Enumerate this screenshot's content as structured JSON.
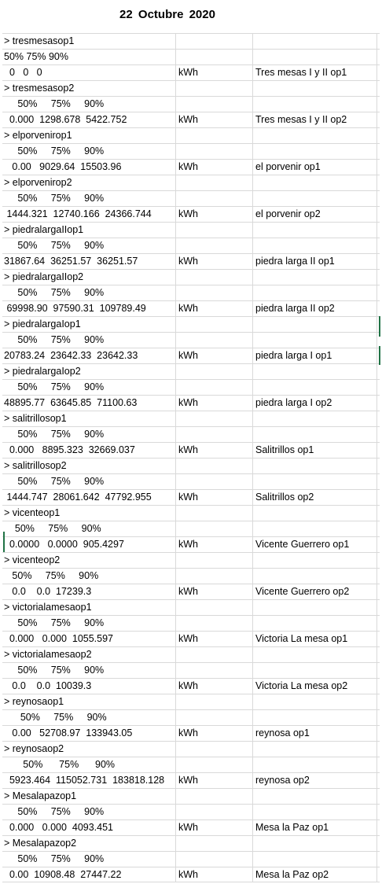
{
  "title": "22  Octubre 2020",
  "rows": [
    {
      "a": "> tresmesasop1",
      "unit": "",
      "name": ""
    },
    {
      "a": "50% 75% 90%",
      "unit": "",
      "name": ""
    },
    {
      "a": "  0   0   0",
      "unit": "kWh",
      "name": "Tres mesas I y II op1"
    },
    {
      "a": "> tresmesasop2",
      "unit": "",
      "name": ""
    },
    {
      "a": "     50%     75%     90%",
      "unit": "",
      "name": ""
    },
    {
      "a": "  0.000  1298.678  5422.752",
      "unit": "kWh",
      "name": "Tres mesas I y II op2"
    },
    {
      "a": "> elporvenirop1",
      "unit": "",
      "name": ""
    },
    {
      "a": "     50%     75%     90%",
      "unit": "",
      "name": ""
    },
    {
      "a": "   0.00   9029.64  15503.96",
      "unit": "kWh",
      "name": "el porvenir op1"
    },
    {
      "a": "> elporvenirop2",
      "unit": "",
      "name": ""
    },
    {
      "a": "     50%     75%     90%",
      "unit": "",
      "name": ""
    },
    {
      "a": " 1444.321  12740.166  24366.744",
      "unit": "kWh",
      "name": "el porvenir op2"
    },
    {
      "a": "> piedralargaIIop1",
      "unit": "",
      "name": ""
    },
    {
      "a": "     50%     75%     90%",
      "unit": "",
      "name": ""
    },
    {
      "a": "31867.64  36251.57  36251.57",
      "unit": "kWh",
      "name": "piedra larga II op1"
    },
    {
      "a": "> piedralargaIIop2",
      "unit": "",
      "name": ""
    },
    {
      "a": "     50%     75%     90%",
      "unit": "",
      "name": ""
    },
    {
      "a": " 69998.90  97590.31  109789.49",
      "unit": "kWh",
      "name": "piedra larga II op2"
    },
    {
      "a": "> piedralargaIop1",
      "unit": "",
      "name": ""
    },
    {
      "a": "     50%     75%     90%",
      "unit": "",
      "name": ""
    },
    {
      "a": "20783.24  23642.33  23642.33",
      "unit": "kWh",
      "name": "piedra larga I op1"
    },
    {
      "a": "> piedralargaIop2",
      "unit": "",
      "name": ""
    },
    {
      "a": "     50%     75%     90%",
      "unit": "",
      "name": ""
    },
    {
      "a": "48895.77  63645.85  71100.63",
      "unit": "kWh",
      "name": "piedra larga I op2"
    },
    {
      "a": "> salitrillosop1",
      "unit": "",
      "name": ""
    },
    {
      "a": "     50%     75%     90%",
      "unit": "",
      "name": ""
    },
    {
      "a": "  0.000   8895.323  32669.037",
      "unit": "kWh",
      "name": "Salitrillos op1"
    },
    {
      "a": "> salitrillosop2",
      "unit": "",
      "name": ""
    },
    {
      "a": "     50%     75%     90%",
      "unit": "",
      "name": ""
    },
    {
      "a": " 1444.747  28061.642  47792.955",
      "unit": "kWh",
      "name": "Salitrillos op2"
    },
    {
      "a": "> vicenteop1",
      "unit": "",
      "name": ""
    },
    {
      "a": "    50%     75%     90%",
      "unit": "",
      "name": ""
    },
    {
      "a": "  0.0000   0.0000  905.4297",
      "unit": "kWh",
      "name": "Vicente Guerrero op1"
    },
    {
      "a": "> vicenteop2",
      "unit": "",
      "name": ""
    },
    {
      "a": "   50%     75%     90%",
      "unit": "",
      "name": ""
    },
    {
      "a": "   0.0    0.0  17239.3",
      "unit": "kWh",
      "name": "Vicente Guerrero op2"
    },
    {
      "a": "> victorialamesaop1",
      "unit": "",
      "name": ""
    },
    {
      "a": "     50%     75%     90%",
      "unit": "",
      "name": ""
    },
    {
      "a": "  0.000   0.000  1055.597",
      "unit": "kWh",
      "name": "Victoria La mesa op1"
    },
    {
      "a": "> victorialamesaop2",
      "unit": "",
      "name": ""
    },
    {
      "a": "     50%     75%     90%",
      "unit": "",
      "name": ""
    },
    {
      "a": "   0.0    0.0  10039.3",
      "unit": "kWh",
      "name": "Victoria La mesa op2"
    },
    {
      "a": "> reynosaop1",
      "unit": "",
      "name": ""
    },
    {
      "a": "      50%     75%     90%",
      "unit": "",
      "name": ""
    },
    {
      "a": "   0.00   52708.97  133943.05",
      "unit": "kWh",
      "name": "reynosa op1"
    },
    {
      "a": "> reynosaop2",
      "unit": "",
      "name": ""
    },
    {
      "a": "       50%      75%      90%",
      "unit": "",
      "name": ""
    },
    {
      "a": "  5923.464  115052.731  183818.128",
      "unit": "kWh",
      "name": "reynosa op2"
    },
    {
      "a": "> Mesalapazop1",
      "unit": "",
      "name": ""
    },
    {
      "a": "     50%     75%     90%",
      "unit": "",
      "name": ""
    },
    {
      "a": "  0.000   0.000  4093.451",
      "unit": "kWh",
      "name": "Mesa la Paz op1"
    },
    {
      "a": "> Mesalapazop2",
      "unit": "",
      "name": ""
    },
    {
      "a": "     50%     75%     90%",
      "unit": "",
      "name": ""
    },
    {
      "a": "  0.00  10908.48  27447.22",
      "unit": "kWh",
      "name": "Mesa la Paz op2"
    }
  ]
}
